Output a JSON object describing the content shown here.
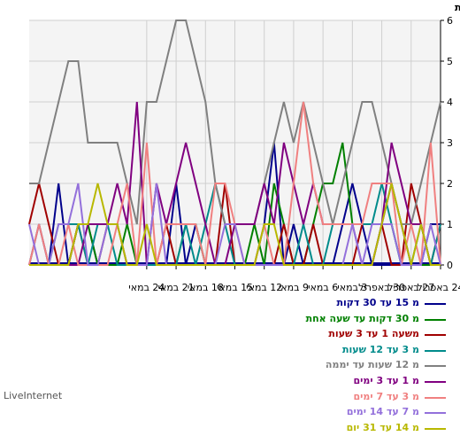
{
  "chart_data": {
    "type": "line",
    "ylabel": "כמות",
    "ylim": [
      0,
      6
    ],
    "yticks": [
      0,
      1,
      2,
      3,
      4,
      5,
      6
    ],
    "x_count": 43,
    "x_tick_labels": [
      {
        "label": "24 באפריל",
        "index": 0
      },
      {
        "label": "27 באפריל",
        "index": 3
      },
      {
        "label": "30 באפריל",
        "index": 6
      },
      {
        "label": "3 במאי",
        "index": 9
      },
      {
        "label": "6 במאי",
        "index": 12
      },
      {
        "label": "9 במאי",
        "index": 15
      },
      {
        "label": "12 במאי",
        "index": 18
      },
      {
        "label": "15 במאי",
        "index": 21
      },
      {
        "label": "18 במאי",
        "index": 24
      },
      {
        "label": "21 במאי",
        "index": 27
      },
      {
        "label": "24 במאי",
        "index": 30
      }
    ],
    "grid": true,
    "series": [
      {
        "name": "מ 15 עד 30 דקות",
        "color": "#00008b",
        "values": [
          1,
          1,
          0,
          0,
          1,
          2,
          1,
          0,
          1,
          2,
          1,
          0,
          0,
          0,
          0,
          1,
          0,
          3,
          1,
          0,
          0,
          0,
          0,
          0,
          0,
          1,
          0,
          2,
          0,
          0,
          0,
          0,
          0,
          0,
          0,
          0,
          1,
          1,
          0,
          2,
          0,
          1,
          0
        ]
      },
      {
        "name": "מ 30 דקות עד שעה אחת",
        "color": "#008000",
        "values": [
          0,
          0,
          0,
          0,
          0,
          1,
          1,
          1,
          1,
          1,
          3,
          2,
          2,
          1,
          0,
          0,
          1,
          2,
          0,
          1,
          0,
          0,
          0,
          0,
          0,
          1,
          1,
          0,
          0,
          0,
          0,
          0,
          1,
          0,
          0,
          0,
          1,
          1,
          0,
          0,
          0,
          0,
          0
        ]
      },
      {
        "name": "משעה 1 עד 3 שעות",
        "color": "#a00000",
        "values": [
          1,
          0,
          1,
          2,
          0,
          0,
          1,
          1,
          1,
          0,
          0,
          0,
          0,
          1,
          0,
          0,
          1,
          0,
          0,
          0,
          0,
          0,
          2,
          0,
          0,
          0,
          0,
          0,
          1,
          0,
          0,
          0,
          0,
          1,
          1,
          0,
          0,
          1,
          0,
          0,
          1,
          2,
          1
        ]
      },
      {
        "name": "מ 3 עד 12 שעות",
        "color": "#008b8b",
        "values": [
          1,
          0,
          1,
          0,
          0,
          1,
          2,
          1,
          1,
          1,
          1,
          1,
          0,
          0,
          1,
          0,
          0,
          0,
          0,
          0,
          0,
          0,
          1,
          2,
          1,
          0,
          1,
          0,
          0,
          0,
          0,
          0,
          0,
          0,
          1,
          1,
          0,
          1,
          1,
          1,
          0,
          0,
          0
        ]
      },
      {
        "name": "מ 12 שעות עד יממה",
        "color": "#808080",
        "values": [
          4,
          3,
          2,
          1,
          1,
          2,
          3,
          4,
          4,
          3,
          2,
          1,
          2,
          3,
          4,
          3,
          4,
          3,
          2,
          1,
          1,
          1,
          1,
          2,
          4,
          5,
          6,
          6,
          5,
          4,
          4,
          1,
          2,
          3,
          3,
          3,
          3,
          5,
          5,
          4,
          3,
          2,
          2
        ]
      },
      {
        "name": "מ 1 עד 3 ימים",
        "color": "#800080",
        "values": [
          0,
          0,
          1,
          1,
          2,
          3,
          1,
          0,
          0,
          1,
          1,
          1,
          1,
          2,
          1,
          2,
          3,
          1,
          2,
          1,
          1,
          1,
          0,
          0,
          1,
          2,
          3,
          2,
          1,
          2,
          0,
          4,
          1,
          2,
          1,
          1,
          1,
          0,
          0,
          0,
          0,
          0,
          0
        ]
      },
      {
        "name": "מ 3 עד 7 ימים",
        "color": "#f08080",
        "values": [
          0,
          3,
          0,
          1,
          0,
          2,
          2,
          2,
          1,
          1,
          1,
          1,
          1,
          2,
          4,
          2,
          0,
          0,
          1,
          0,
          0,
          1,
          2,
          2,
          0,
          1,
          1,
          1,
          1,
          0,
          3,
          0,
          2,
          1,
          0,
          0,
          0,
          0,
          1,
          0,
          0,
          1,
          0
        ]
      },
      {
        "name": "מ 7 עד 14 ימים",
        "color": "#9370db",
        "values": [
          0,
          1,
          0,
          0,
          0,
          1,
          1,
          1,
          0,
          1,
          0,
          0,
          0,
          0,
          0,
          0,
          0,
          0,
          0,
          0,
          0,
          1,
          1,
          0,
          0,
          0,
          0,
          0,
          0,
          2,
          0,
          0,
          0,
          1,
          1,
          0,
          0,
          2,
          1,
          1,
          0,
          0,
          1
        ]
      },
      {
        "name": "מ 14 עד 31 יום",
        "color": "#b8b800",
        "values": [
          0,
          0,
          1,
          0,
          1,
          2,
          1,
          0,
          0,
          0,
          0,
          0,
          0,
          0,
          0,
          0,
          0,
          1,
          1,
          0,
          0,
          0,
          0,
          0,
          0,
          0,
          0,
          0,
          0,
          0,
          1,
          0,
          0,
          1,
          1,
          2,
          1,
          1,
          0,
          0,
          0,
          0,
          0
        ]
      }
    ]
  },
  "footer": {
    "brand": "LiveInternet"
  }
}
